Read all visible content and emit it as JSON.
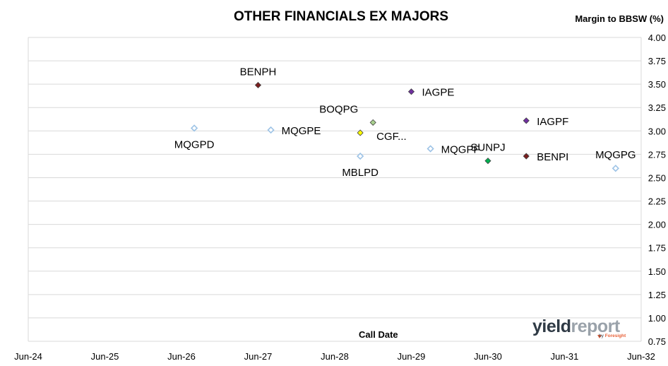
{
  "chart_data": {
    "type": "scatter",
    "title": "OTHER FINANCIALS EX MAJORS",
    "ylabel": "Margin to BBSW (%)",
    "xlabel": "Call Date",
    "x_ticks": [
      "Jun-24",
      "Jun-25",
      "Jun-26",
      "Jun-27",
      "Jun-28",
      "Jun-29",
      "Jun-30",
      "Jun-31",
      "Jun-32"
    ],
    "y_ticks": [
      "4.00",
      "3.75",
      "3.50",
      "3.25",
      "3.00",
      "2.75",
      "2.50",
      "2.25",
      "2.00",
      "1.75",
      "1.50",
      "1.25",
      "1.00",
      "0.75"
    ],
    "ylim": [
      0.75,
      4.0
    ],
    "xlim": [
      "Jun-24",
      "Jun-32"
    ],
    "grid": "horizontal",
    "points": [
      {
        "label": "BENPH",
        "x": "2027-06",
        "y": 3.49,
        "color": "#7b1e1e",
        "hollow": false,
        "label_pos": "above"
      },
      {
        "label": "IAGPE",
        "x": "2029-06",
        "y": 3.42,
        "color": "#7030a0",
        "hollow": false,
        "label_pos": "right"
      },
      {
        "label": "MQGPD",
        "x": "2026-08",
        "y": 3.03,
        "color": "#9dc3e6",
        "hollow": true,
        "label_pos": "below"
      },
      {
        "label": "MQGPE",
        "x": "2027-08",
        "y": 3.01,
        "color": "#9dc3e6",
        "hollow": true,
        "label_pos": "right"
      },
      {
        "label": "BOQPG",
        "x": "2028-12",
        "y": 3.09,
        "color": "#a9d18e",
        "hollow": false,
        "label_pos": "above-left"
      },
      {
        "label": "CGF...",
        "x": "2028-10",
        "y": 2.98,
        "color": "#ffff00",
        "hollow": false,
        "label_pos": "below-right"
      },
      {
        "label": "IAGPF",
        "x": "2030-12",
        "y": 3.11,
        "color": "#7030a0",
        "hollow": false,
        "label_pos": "right"
      },
      {
        "label": "MQGPF",
        "x": "2029-09",
        "y": 2.81,
        "color": "#9dc3e6",
        "hollow": true,
        "label_pos": "right"
      },
      {
        "label": "MBLPD",
        "x": "2028-10",
        "y": 2.73,
        "color": "#9dc3e6",
        "hollow": true,
        "label_pos": "below"
      },
      {
        "label": "SUNPJ",
        "x": "2030-06",
        "y": 2.68,
        "color": "#00b050",
        "hollow": false,
        "label_pos": "above"
      },
      {
        "label": "BENPI",
        "x": "2030-12",
        "y": 2.73,
        "color": "#7b1e1e",
        "hollow": false,
        "label_pos": "right"
      },
      {
        "label": "MQGPG",
        "x": "2032-02",
        "y": 2.6,
        "color": "#9dc3e6",
        "hollow": true,
        "label_pos": "above"
      }
    ]
  },
  "logo": {
    "word_dark": "yield",
    "word_light": "report",
    "by": "by",
    "brand": "Foresight"
  }
}
